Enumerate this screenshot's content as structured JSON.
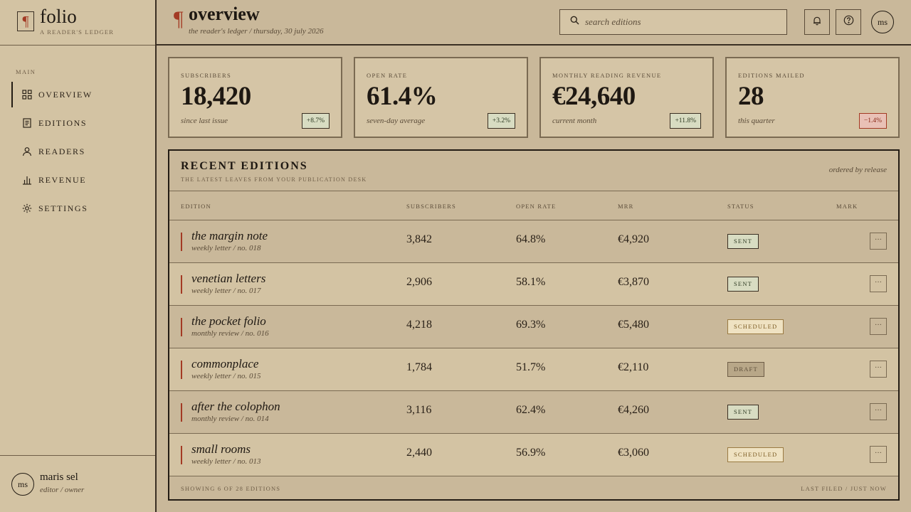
{
  "brand": {
    "mark": "¶",
    "name": "folio",
    "tagline": "A reader's ledger"
  },
  "sidebar": {
    "section_label": "Main",
    "items": [
      {
        "label": "Overview",
        "icon": "grid-icon",
        "active": true
      },
      {
        "label": "Editions",
        "icon": "document-icon",
        "active": false
      },
      {
        "label": "Readers",
        "icon": "person-icon",
        "active": false
      },
      {
        "label": "Revenue",
        "icon": "bar-chart-icon",
        "active": false
      },
      {
        "label": "Settings",
        "icon": "gear-icon",
        "active": false
      }
    ],
    "user": {
      "initials": "ms",
      "name": "maris sel",
      "role": "editor / owner"
    }
  },
  "header": {
    "mark": "¶",
    "title": "overview",
    "subtitle": "the reader's ledger / thursday, 30 july 2026",
    "search_placeholder": "search editions",
    "user_initials": "ms"
  },
  "stats": [
    {
      "label": "Subscribers",
      "value": "18,420",
      "note": "since last issue",
      "delta": "+8.7%",
      "trend": "up"
    },
    {
      "label": "Open rate",
      "value": "61.4%",
      "note": "seven-day average",
      "delta": "+3.2%",
      "trend": "up"
    },
    {
      "label": "Monthly reading revenue",
      "value": "€24,640",
      "note": "current month",
      "delta": "+11.8%",
      "trend": "up"
    },
    {
      "label": "Editions mailed",
      "value": "28",
      "note": "this quarter",
      "delta": "−1.4%",
      "trend": "down"
    }
  ],
  "table": {
    "title": "Recent editions",
    "subtitle": "The latest leaves from your publication desk",
    "order_note": "ordered by release",
    "columns": [
      "Edition",
      "Subscribers",
      "Open rate",
      "MRR",
      "Status",
      "Mark"
    ],
    "rows": [
      {
        "name": "the margin note",
        "meta": "weekly letter / no. 018",
        "subscribers": "3,842",
        "open_rate": "64.8%",
        "mrr": "€4,920",
        "status": "Sent"
      },
      {
        "name": "venetian letters",
        "meta": "weekly letter / no. 017",
        "subscribers": "2,906",
        "open_rate": "58.1%",
        "mrr": "€3,870",
        "status": "Sent"
      },
      {
        "name": "the pocket folio",
        "meta": "monthly review / no. 016",
        "subscribers": "4,218",
        "open_rate": "69.3%",
        "mrr": "€5,480",
        "status": "Scheduled"
      },
      {
        "name": "commonplace",
        "meta": "weekly letter / no. 015",
        "subscribers": "1,784",
        "open_rate": "51.7%",
        "mrr": "€2,110",
        "status": "Draft"
      },
      {
        "name": "after the colophon",
        "meta": "monthly review / no. 014",
        "subscribers": "3,116",
        "open_rate": "62.4%",
        "mrr": "€4,260",
        "status": "Sent"
      },
      {
        "name": "small rooms",
        "meta": "weekly letter / no. 013",
        "subscribers": "2,440",
        "open_rate": "56.9%",
        "mrr": "€3,060",
        "status": "Scheduled"
      }
    ],
    "more_label": "···",
    "footer_left": "Showing 6 of 28 editions",
    "footer_right": "Last filed / just now"
  },
  "colors": {
    "accent": "#a33a24",
    "paper": "#c9b89a",
    "ink": "#231c14"
  }
}
